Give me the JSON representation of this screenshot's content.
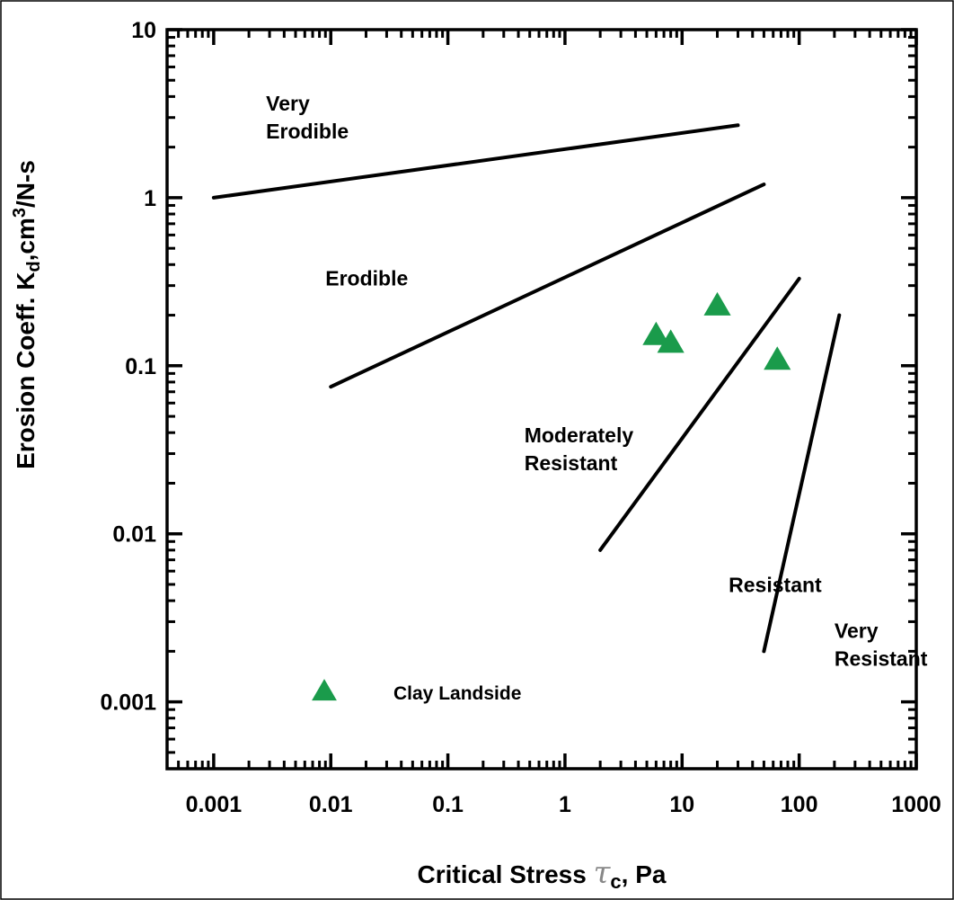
{
  "chart_data": {
    "type": "scatter",
    "title": "",
    "xlabel": {
      "main": "Critical Stress ",
      "tau": "τ",
      "sub": "c",
      "tail": ", Pa"
    },
    "ylabel": {
      "main": "Erosion Coeff. K",
      "sub": "d",
      "mid": ",cm",
      "sup": "3",
      "tail": "/N-s"
    },
    "xscale": "log",
    "yscale": "log",
    "xlim": [
      0.0004,
      1000
    ],
    "ylim": [
      0.0004,
      10
    ],
    "x_ticks": [
      {
        "value": 0.001,
        "label": "0.001"
      },
      {
        "value": 0.01,
        "label": "0.01"
      },
      {
        "value": 0.1,
        "label": "0.1"
      },
      {
        "value": 1,
        "label": "1"
      },
      {
        "value": 10,
        "label": "10"
      },
      {
        "value": 100,
        "label": "100"
      },
      {
        "value": 1000,
        "label": "1000"
      }
    ],
    "y_ticks": [
      {
        "value": 0.001,
        "label": "0.001"
      },
      {
        "value": 0.01,
        "label": "0.01"
      },
      {
        "value": 0.1,
        "label": "0.1"
      },
      {
        "value": 1,
        "label": "1"
      },
      {
        "value": 10,
        "label": "10"
      }
    ],
    "boundary_lines": [
      {
        "x": [
          0.001,
          30
        ],
        "y": [
          1.0,
          2.7
        ]
      },
      {
        "x": [
          0.01,
          50
        ],
        "y": [
          0.075,
          1.2
        ]
      },
      {
        "x": [
          2,
          100
        ],
        "y": [
          0.008,
          0.33
        ]
      },
      {
        "x": [
          50,
          220
        ],
        "y": [
          0.002,
          0.2
        ]
      }
    ],
    "regions": [
      {
        "lines": [
          "Very",
          "Erodible"
        ],
        "x": 0.0028,
        "y": 3.3
      },
      {
        "lines": [
          "Erodible"
        ],
        "x": 0.009,
        "y": 0.3
      },
      {
        "lines": [
          "Moderately",
          "Resistant"
        ],
        "x": 0.45,
        "y": 0.035
      },
      {
        "lines": [
          "Resistant"
        ],
        "x": 25,
        "y": 0.0045
      },
      {
        "lines": [
          "Very",
          "Resistant"
        ],
        "x": 200,
        "y": 0.0024
      }
    ],
    "series": [
      {
        "name": "Clay Landside",
        "marker": "triangle",
        "color": "#1a9b4b",
        "points": [
          {
            "x": 6,
            "y": 0.15
          },
          {
            "x": 8,
            "y": 0.135
          },
          {
            "x": 20,
            "y": 0.225
          },
          {
            "x": 65,
            "y": 0.107
          }
        ]
      }
    ],
    "legend": {
      "label": "Clay Landside",
      "placement": "bottom-left"
    },
    "grid": false
  }
}
